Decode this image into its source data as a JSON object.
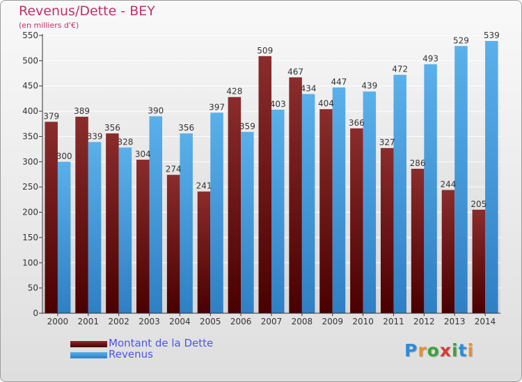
{
  "title": "Revenus/Dette - BEY",
  "subtitle": "(en milliers d'€)",
  "logo_text": "Proxiti",
  "colors": {
    "dette": "#6e1616",
    "revenus": "#3796dc",
    "title": "#c0306a",
    "legend_text": "#4b55e6"
  },
  "chart_data": {
    "type": "bar",
    "categories": [
      "2000",
      "2001",
      "2002",
      "2003",
      "2004",
      "2005",
      "2006",
      "2007",
      "2008",
      "2009",
      "2010",
      "2011",
      "2012",
      "2013",
      "2014"
    ],
    "series": [
      {
        "name": "Montant de la Dette",
        "values": [
          379,
          389,
          356,
          304,
          274,
          241,
          428,
          509,
          467,
          404,
          366,
          327,
          286,
          244,
          205
        ]
      },
      {
        "name": "Revenus",
        "values": [
          300,
          339,
          328,
          390,
          356,
          397,
          359,
          403,
          434,
          447,
          439,
          472,
          493,
          529,
          539
        ]
      }
    ],
    "ylim": [
      0,
      550
    ],
    "yticks": [
      0,
      50,
      100,
      150,
      200,
      250,
      300,
      350,
      400,
      450,
      500,
      550
    ],
    "grid": true,
    "legend_position": "bottom-left"
  }
}
